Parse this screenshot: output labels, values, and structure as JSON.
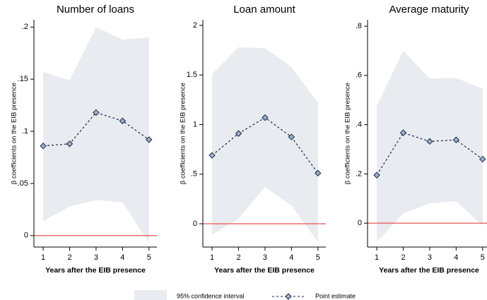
{
  "legend": {
    "band": "95% confidence interval",
    "line": "Point estimate"
  },
  "chart_data": [
    {
      "type": "line",
      "title": "Number of loans",
      "x_label": "Years after the EIB presence",
      "y_label": "β coefficients on the EIB presence",
      "x": [
        1,
        2,
        3,
        4,
        5
      ],
      "values": [
        0.086,
        0.088,
        0.118,
        0.11,
        0.092
      ],
      "lower": [
        0.014,
        0.028,
        0.034,
        0.032,
        -0.007
      ],
      "upper": [
        0.157,
        0.149,
        0.2,
        0.188,
        0.19
      ],
      "reference_line": 0,
      "xlim": [
        0.65,
        5.3
      ],
      "ylim": [
        -0.011,
        0.207
      ],
      "xticks": [
        1,
        2,
        3,
        4,
        5
      ],
      "yticks": [
        0,
        {
          "value": 0.05,
          "label": ".05"
        },
        {
          "value": 0.1,
          "label": ".1"
        },
        {
          "value": 0.15,
          "label": ".15"
        },
        {
          "value": 0.2,
          "label": ".2"
        }
      ]
    },
    {
      "type": "line",
      "title": "Loan amount",
      "x_label": "Years after the EIB presence",
      "y_label": "β coefficients on the EIB presence",
      "x": [
        1,
        2,
        3,
        4,
        5
      ],
      "values": [
        0.69,
        0.91,
        1.07,
        0.875,
        0.51
      ],
      "lower": [
        -0.11,
        0.05,
        0.37,
        0.185,
        -0.185
      ],
      "upper": [
        1.51,
        1.78,
        1.77,
        1.58,
        1.22
      ],
      "reference_line": 0,
      "xlim": [
        0.65,
        5.3
      ],
      "ylim": [
        -0.235,
        2.057
      ],
      "xticks": [
        1,
        2,
        3,
        4,
        5
      ],
      "yticks": [
        0,
        {
          "value": 0.5,
          "label": ".5"
        },
        1,
        1.5,
        2
      ]
    },
    {
      "type": "line",
      "title": "Average maturity",
      "x_label": "Years after the EIB presence",
      "y_label": "β coefficients on the EIB presence",
      "x": [
        1,
        2,
        3,
        4,
        5
      ],
      "values": [
        0.195,
        0.367,
        0.332,
        0.338,
        0.26
      ],
      "lower": [
        -0.077,
        0.04,
        0.08,
        0.089,
        -0.01
      ],
      "upper": [
        0.476,
        0.7,
        0.587,
        0.59,
        0.545
      ],
      "reference_line": 0,
      "xlim": [
        0.65,
        5.3
      ],
      "ylim": [
        -0.097,
        0.826
      ],
      "xticks": [
        1,
        2,
        3,
        4,
        5
      ],
      "yticks": [
        0,
        {
          "value": 0.2,
          "label": ".2"
        },
        {
          "value": 0.4,
          "label": ".4"
        },
        {
          "value": 0.6,
          "label": ".6"
        },
        {
          "value": 0.8,
          "label": ".8"
        }
      ]
    }
  ]
}
